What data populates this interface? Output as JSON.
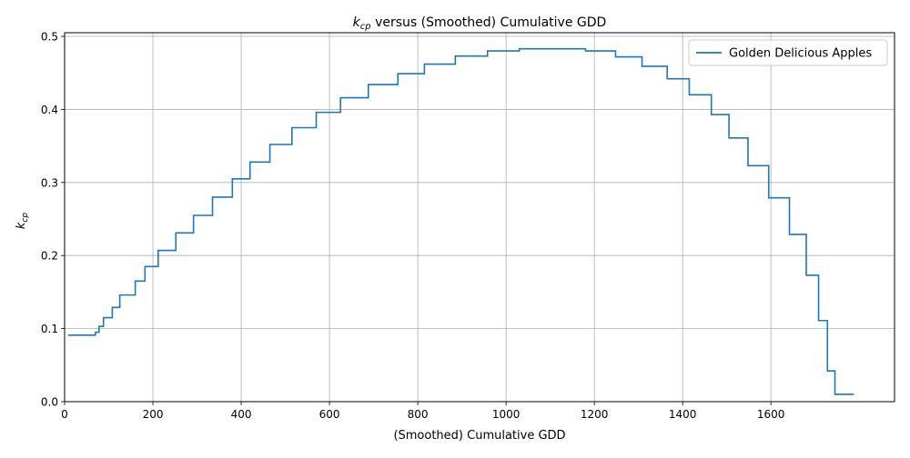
{
  "chart_data": {
    "type": "line",
    "title": {
      "prefix": "k",
      "subscript": "cp",
      "suffix": " versus (Smoothed) Cumulative GDD"
    },
    "xlabel": "(Smoothed) Cumulative GDD",
    "ylabel": {
      "base": "k",
      "subscript": "cp"
    },
    "xlim": [
      0,
      1880
    ],
    "ylim": [
      0,
      0.505
    ],
    "xticks": [
      0,
      200,
      400,
      600,
      800,
      1000,
      1200,
      1400,
      1600
    ],
    "xtick_labels": [
      "0",
      "200",
      "400",
      "600",
      "800",
      "1000",
      "1200",
      "1400",
      "1600"
    ],
    "yticks": [
      0.0,
      0.1,
      0.2,
      0.3,
      0.4,
      0.5
    ],
    "ytick_labels": [
      "0.0",
      "0.1",
      "0.2",
      "0.3",
      "0.4",
      "0.5"
    ],
    "grid": true,
    "legend_position": "upper right",
    "series": [
      {
        "name": "Golden Delicious Apples",
        "color": "#1f77b4",
        "x": [
          8,
          70,
          70,
          78,
          78,
          88,
          88,
          96,
          96,
          108,
          108,
          125,
          125,
          142,
          142,
          160,
          160,
          182,
          182,
          212,
          212,
          252,
          252,
          292,
          292,
          335,
          335,
          380,
          380,
          420,
          420,
          465,
          465,
          515,
          515,
          570,
          570,
          625,
          625,
          688,
          688,
          755,
          755,
          815,
          815,
          885,
          885,
          958,
          958,
          1030,
          1030,
          1180,
          1180,
          1248,
          1248,
          1308,
          1308,
          1365,
          1365,
          1415,
          1415,
          1465,
          1465,
          1505,
          1505,
          1548,
          1548,
          1595,
          1595,
          1642,
          1642,
          1680,
          1680,
          1708,
          1708,
          1728,
          1728,
          1745,
          1745,
          1788
        ],
        "y": [
          0.091,
          0.091,
          0.095,
          0.095,
          0.103,
          0.103,
          0.115,
          0.115,
          0.115,
          0.115,
          0.129,
          0.129,
          0.146,
          0.146,
          0.146,
          0.146,
          0.165,
          0.165,
          0.185,
          0.185,
          0.207,
          0.207,
          0.231,
          0.231,
          0.255,
          0.255,
          0.28,
          0.28,
          0.305,
          0.305,
          0.328,
          0.328,
          0.352,
          0.352,
          0.375,
          0.375,
          0.396,
          0.396,
          0.416,
          0.416,
          0.434,
          0.434,
          0.449,
          0.449,
          0.462,
          0.462,
          0.473,
          0.473,
          0.48,
          0.48,
          0.483,
          0.483,
          0.48,
          0.48,
          0.472,
          0.472,
          0.459,
          0.459,
          0.442,
          0.442,
          0.42,
          0.42,
          0.393,
          0.393,
          0.361,
          0.361,
          0.323,
          0.323,
          0.279,
          0.279,
          0.229,
          0.229,
          0.173,
          0.173,
          0.111,
          0.111,
          0.042,
          0.042,
          0.01,
          0.01
        ]
      }
    ]
  }
}
